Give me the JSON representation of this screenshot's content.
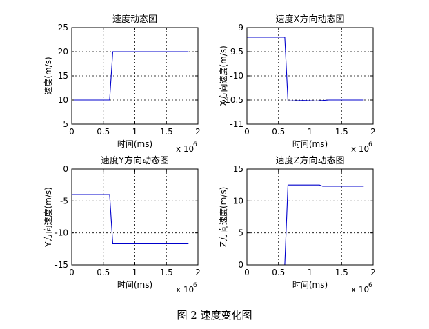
{
  "caption": "图 2  速度变化图",
  "chart_data": [
    {
      "type": "line",
      "title": "速度动态图",
      "xlabel": "时间(ms)",
      "ylabel": "速度(m/s)",
      "x_multiplier": "x 10",
      "x_multiplier_exp": "6",
      "xlim": [
        0,
        2
      ],
      "ylim": [
        5,
        25
      ],
      "xticks": [
        "0",
        "0.5",
        "1",
        "1.5",
        "2"
      ],
      "yticks": [
        "5",
        "10",
        "15",
        "20",
        "25"
      ],
      "grid": true,
      "line_color": "#0000cc",
      "series": [
        {
          "x": [
            0,
            0.6,
            0.65,
            1.85
          ],
          "y": [
            10,
            10,
            20,
            20
          ]
        }
      ]
    },
    {
      "type": "line",
      "title": "速度X方向动态图",
      "xlabel": "时间(ms)",
      "ylabel": "X方向速度(m/s)",
      "x_multiplier": "x 10",
      "x_multiplier_exp": "6",
      "xlim": [
        0,
        2
      ],
      "ylim": [
        -11,
        -9
      ],
      "xticks": [
        "0",
        "0.5",
        "1",
        "1.5",
        "2"
      ],
      "yticks": [
        "-11",
        "-10.5",
        "-10",
        "-9.5",
        "-9"
      ],
      "grid": true,
      "line_color": "#0000cc",
      "series": [
        {
          "x": [
            0,
            0.6,
            0.65,
            0.9,
            1.1,
            1.3,
            1.6,
            1.85
          ],
          "y": [
            -9.2,
            -9.2,
            -10.52,
            -10.51,
            -10.52,
            -10.5,
            -10.5,
            -10.5
          ]
        }
      ]
    },
    {
      "type": "line",
      "title": "速度Y方向动态图",
      "xlabel": "时间(ms)",
      "ylabel": "Y方向速度(m/s)",
      "x_multiplier": "x 10",
      "x_multiplier_exp": "6",
      "xlim": [
        0,
        2
      ],
      "ylim": [
        -15,
        0
      ],
      "xticks": [
        "0",
        "0.5",
        "1",
        "1.5",
        "2"
      ],
      "yticks": [
        "-15",
        "-10",
        "-5",
        "0"
      ],
      "grid": true,
      "line_color": "#0000cc",
      "series": [
        {
          "x": [
            0,
            0.6,
            0.65,
            1.85
          ],
          "y": [
            -4,
            -4,
            -11.7,
            -11.7
          ]
        }
      ]
    },
    {
      "type": "line",
      "title": "速度Z方向动态图",
      "xlabel": "时间(ms)",
      "ylabel": "Z方向速度(m/s)",
      "x_multiplier": "x 10",
      "x_multiplier_exp": "6",
      "xlim": [
        0,
        2
      ],
      "ylim": [
        0,
        15
      ],
      "xticks": [
        "0",
        "0.5",
        "1",
        "1.5",
        "2"
      ],
      "yticks": [
        "0",
        "5",
        "10",
        "15"
      ],
      "grid": true,
      "line_color": "#0000cc",
      "series": [
        {
          "x": [
            0,
            0.6,
            0.65,
            1.15,
            1.2,
            1.85
          ],
          "y": [
            0,
            0,
            12.5,
            12.5,
            12.3,
            12.3
          ]
        }
      ]
    }
  ]
}
